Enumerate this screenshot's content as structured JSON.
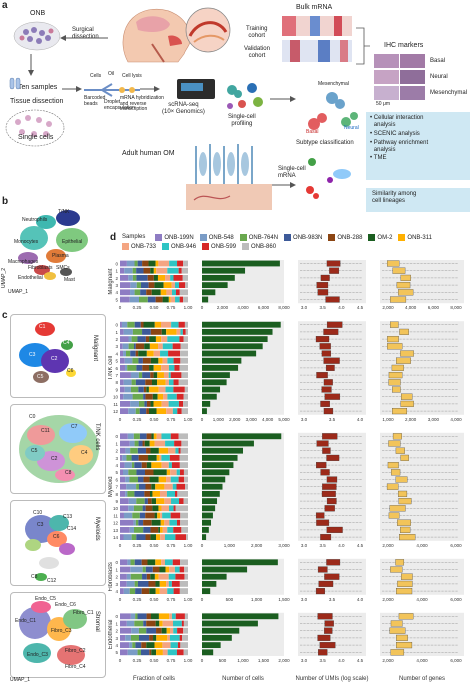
{
  "panel_a": {
    "label": "a",
    "onb": "ONB",
    "surgical": "Surgical\ndissection",
    "ten_samples": "Ten samples",
    "tissue_dissection": "Tissue dissection",
    "single_cells": "Single cells",
    "cells_label": "Cells",
    "oil_label": "Oil",
    "barcoded": "Barcoded\nbeads",
    "droplet": "Droplet\nencapsulation",
    "lysis": "Cell lysis",
    "hybrid": "mRNA hybridization\nand reverse\ntranscription",
    "scrna": "scRNA-seq\n(10× Genomics)",
    "single_cell_profiling": "Single-cell\nprofiling",
    "bulk": "Bulk mRNA",
    "training": "Training\ncohort",
    "validation": "Validation\ncohort",
    "mesenchymal_top": "Mesenchymal",
    "basal_cluster": "Basal",
    "neural_cluster": "Neural",
    "subtype": "Subtype classification",
    "ihc": "IHC markers",
    "ihc_rows": [
      "Basal",
      "Neural",
      "Mesenchymal"
    ],
    "scale": "50 μm",
    "adult": "Adult human OM",
    "single_cell_mrna": "Single-cell\nmRNA",
    "analyses": [
      "Cellular interaction\nanalysis",
      "SCENIC analysis",
      "Pathway enrichment\nanalysis",
      "TME"
    ],
    "similarity": "Similarity among\ncell lineages"
  },
  "panel_b": {
    "label": "b",
    "clusters": [
      "T/NK",
      "Neutrophils",
      "Monocytes",
      "Epithelial",
      "Plasma",
      "Macrophages",
      "Fibroblasts",
      "SMCs",
      "Endothelial",
      "Mast"
    ],
    "x": "UMAP_1",
    "y": "UMAP_2"
  },
  "panel_c": {
    "label": "c",
    "panels": [
      {
        "title": "Malignant",
        "clusters": [
          "C1",
          "C2",
          "C3",
          "C4",
          "C5",
          "C6"
        ]
      },
      {
        "title": "T/NK cells",
        "clusters": [
          "C1",
          "C2",
          "C3",
          "C4",
          "C5",
          "C6",
          "C7",
          "C8",
          "C9",
          "C10",
          "C11",
          "C12",
          "C0"
        ]
      },
      {
        "title": "Myeloids",
        "clusters": [
          "C1",
          "C2",
          "C3",
          "C4",
          "C5",
          "C6",
          "C7",
          "C8",
          "C9",
          "C10",
          "C11",
          "C12",
          "C13",
          "C14",
          "C0"
        ]
      },
      {
        "title": "Stromal",
        "clusters": [
          "Endo_C5",
          "Endo_C6",
          "Endo_C1",
          "Endo_C2",
          "Endo_C3",
          "Endo_C4",
          "Fibro_C1",
          "Fibro_C2",
          "Fibro_C3",
          "Fibro_C4",
          "Fibro_C5"
        ]
      }
    ],
    "x": "UMAP_1",
    "y": "UMAP_2"
  },
  "panel_d": {
    "label": "d",
    "legend_title": "Samples",
    "samples": [
      "ONB-199N",
      "ONB-548",
      "ONB-764N",
      "ONB-983N",
      "ONB-288",
      "OM-2",
      "ONB-311",
      "ONB-733",
      "ONB-946",
      "ONB-599",
      "ONB-860"
    ],
    "sample_colors": [
      "#8e7cc3",
      "#7a9cc6",
      "#6aa84f",
      "#3d5a99",
      "#8b4513",
      "#1b5e20",
      "#ffb000",
      "#f4a582",
      "#2ec4c4",
      "#d62728",
      "#bcbcbc"
    ],
    "xlabels": [
      "Fraction of cells",
      "Number of cells",
      "Number of UMIs (log scale)",
      "Number of genes"
    ]
  },
  "chart_data": [
    {
      "type": "bar",
      "title": "Malignant",
      "categories": [
        "0",
        "1",
        "2",
        "3",
        "4",
        "5"
      ],
      "series": [
        {
          "name": "Number of cells",
          "values": [
            7600,
            4200,
            3200,
            2500,
            1300,
            600
          ]
        }
      ],
      "xlabel": "Number of cells",
      "xlim": [
        0,
        8000
      ],
      "xticks": [
        "0",
        "2,000",
        "4,000",
        "6,000",
        "8,000"
      ]
    },
    {
      "type": "bar",
      "title": "T/NK cell",
      "categories": [
        "0",
        "1",
        "2",
        "3",
        "4",
        "5",
        "6",
        "7",
        "8",
        "9",
        "10",
        "11",
        "12"
      ],
      "series": [
        {
          "name": "Number of cells",
          "values": [
            4800,
            4300,
            4000,
            3700,
            3300,
            2400,
            2200,
            1700,
            1500,
            1100,
            900,
            500,
            300
          ]
        }
      ],
      "xlabel": "Number of cells",
      "xlim": [
        0,
        5000
      ],
      "xticks": [
        "0",
        "1,000",
        "2,000",
        "3,000",
        "4,000",
        "5,000"
      ]
    },
    {
      "type": "bar",
      "title": "Myeloid",
      "categories": [
        "0",
        "1",
        "2",
        "3",
        "4",
        "5",
        "6",
        "7",
        "8",
        "9",
        "10",
        "11",
        "12",
        "13",
        "14"
      ],
      "series": [
        {
          "name": "Number of cells",
          "values": [
            2900,
            1900,
            1500,
            1300,
            1150,
            1000,
            850,
            750,
            650,
            550,
            480,
            400,
            330,
            250,
            150
          ]
        }
      ],
      "xlabel": "Number of cells",
      "xlim": [
        0,
        3000
      ],
      "xticks": [
        "0",
        "1,000",
        "2,000",
        "3,000"
      ]
    },
    {
      "type": "bar",
      "title": "Fibroblasts",
      "categories": [
        "0",
        "1",
        "2",
        "3",
        "4"
      ],
      "series": [
        {
          "name": "Number of cells",
          "values": [
            1850,
            1100,
            600,
            350,
            200
          ]
        }
      ],
      "xlabel": "Number of cells",
      "xlim": [
        0,
        2000
      ],
      "xticks": [
        "0",
        "500",
        "1,000",
        "1,500"
      ]
    },
    {
      "type": "bar",
      "title": "Endothelial",
      "categories": [
        "0",
        "1",
        "2",
        "3",
        "4",
        "5"
      ],
      "series": [
        {
          "name": "Number of cells",
          "values": [
            2050,
            1500,
            1000,
            800,
            500,
            300
          ]
        }
      ],
      "xlabel": "Number of cells",
      "xlim": [
        0,
        2200
      ],
      "xticks": [
        "0",
        "500",
        "1,000",
        "1,500",
        "2,000"
      ]
    }
  ],
  "frac_ticks": [
    "0",
    "0.25",
    "0.50",
    "0.75",
    "1.00"
  ],
  "umi_ticks": [
    [
      "3.0",
      "3.5",
      "4.0",
      "4.5"
    ],
    [
      "3.0",
      "3.5",
      "4.0"
    ],
    [
      "3.0",
      "3.5",
      "4.0",
      "4.5"
    ],
    [
      "3.0",
      "3.5",
      "4.0"
    ],
    [
      "3.0",
      "3.5",
      "4.0",
      "4.5"
    ]
  ],
  "gene_ticks": [
    [
      "2,000",
      "4,000",
      "6,000",
      "8,000"
    ],
    [
      "1,000",
      "2,000",
      "3,000",
      "4,000"
    ],
    [
      "2,000",
      "4,000",
      "6,000"
    ],
    [
      "2,000",
      "4,000",
      "6,000"
    ],
    [
      "2,000",
      "4,000",
      "6,000"
    ]
  ]
}
